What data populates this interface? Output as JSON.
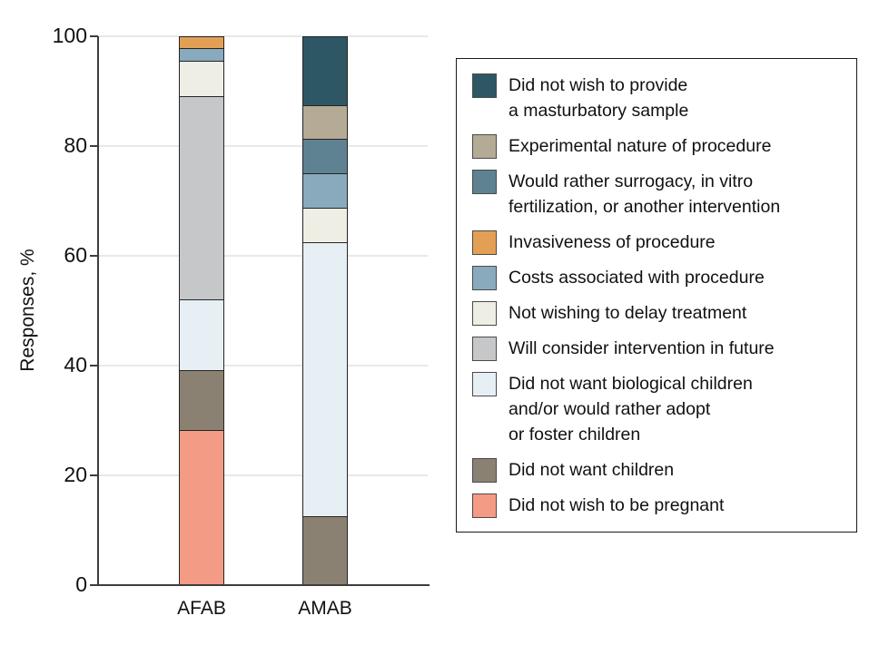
{
  "chart_data": {
    "type": "bar",
    "subtype": "stacked",
    "title": "",
    "ylabel": "Responses, %",
    "xlabel": "",
    "ylim": [
      0,
      100
    ],
    "yticks": [
      0,
      20,
      40,
      60,
      80,
      100
    ],
    "grid": true,
    "legend_position": "right",
    "categories": [
      "AFAB",
      "AMAB"
    ],
    "series": [
      {
        "name": "Did not wish to provide a masturbatory sample",
        "lines": [
          "Did not wish to provide",
          "a masturbatory sample"
        ],
        "color": "#2e5766",
        "values": [
          0,
          12.5
        ]
      },
      {
        "name": "Experimental nature of procedure",
        "lines": [
          "Experimental nature of procedure"
        ],
        "color": "#b4aa96",
        "values": [
          0,
          6.25
        ]
      },
      {
        "name": "Would rather surrogacy, in vitro fertilization, or another intervention",
        "lines": [
          "Would rather surrogacy, in vitro",
          "fertilization, or another intervention"
        ],
        "color": "#5e8292",
        "values": [
          0,
          6.25
        ]
      },
      {
        "name": "Invasiveness of procedure",
        "lines": [
          "Invasiveness of procedure"
        ],
        "color": "#e3a055",
        "values": [
          2.2,
          0
        ]
      },
      {
        "name": "Costs associated with procedure",
        "lines": [
          "Costs associated with procedure"
        ],
        "color": "#88aabc",
        "values": [
          2.2,
          6.25
        ]
      },
      {
        "name": "Not wishing to delay treatment",
        "lines": [
          "Not wishing to delay treatment"
        ],
        "color": "#efeee4",
        "values": [
          6.5,
          6.25
        ]
      },
      {
        "name": "Will consider intervention in future",
        "lines": [
          "Will consider intervention in future"
        ],
        "color": "#c6c7c9",
        "values": [
          37,
          0
        ]
      },
      {
        "name": "Did not want biological children and/or would rather adopt or foster children",
        "lines": [
          "Did not want biological children",
          "and/or would rather adopt",
          "or foster children"
        ],
        "color": "#e6eff4",
        "values": [
          13,
          50
        ]
      },
      {
        "name": "Did not want children",
        "lines": [
          "Did not want children"
        ],
        "color": "#8a8172",
        "values": [
          10.9,
          12.5
        ]
      },
      {
        "name": "Did not wish to be pregnant",
        "lines": [
          "Did not wish to be pregnant"
        ],
        "color": "#f39b85",
        "values": [
          28.2,
          0
        ]
      }
    ]
  }
}
